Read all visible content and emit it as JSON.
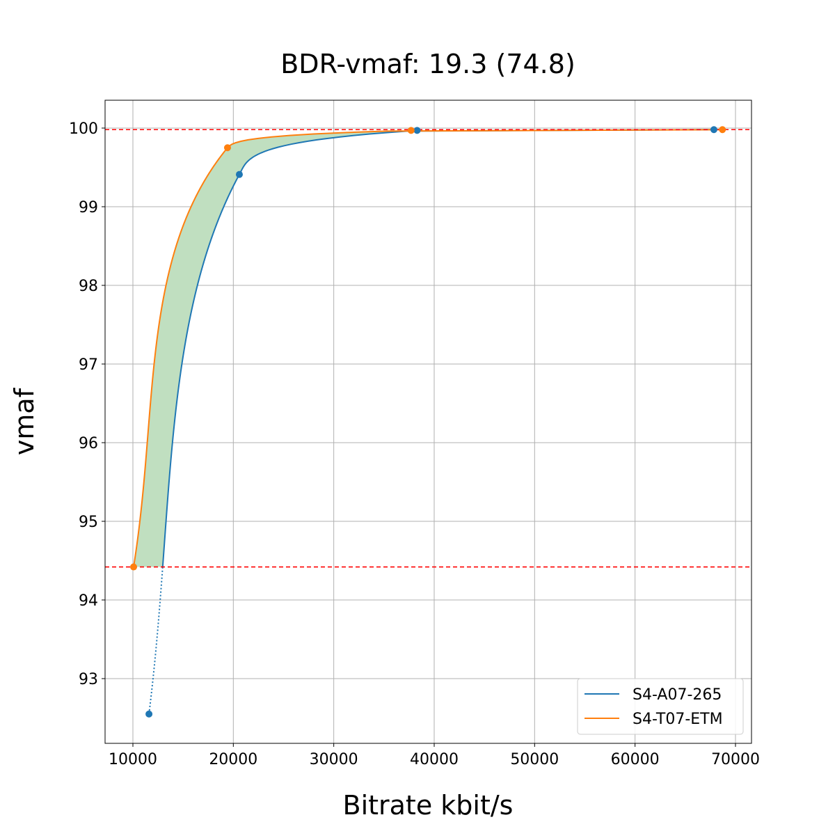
{
  "chart_data": {
    "type": "line",
    "title": "BDR-vmaf: 19.3 (74.8)",
    "xlabel": "Bitrate kbit/s",
    "ylabel": "vmaf",
    "xlim": [
      7229,
      71595
    ],
    "ylim": [
      92.177,
      100.354
    ],
    "xticks": [
      "10000",
      "20000",
      "30000",
      "40000",
      "50000",
      "60000",
      "70000"
    ],
    "yticks": [
      "93",
      "94",
      "95",
      "96",
      "97",
      "98",
      "99",
      "100"
    ],
    "grid": true,
    "legend_position": "lower-right",
    "series": [
      {
        "name": "S4-A07-265",
        "color": "#1f77b4",
        "x": [
          11600,
          20600,
          38300,
          67850
        ],
        "y": [
          92.55,
          99.41,
          99.97,
          99.98
        ]
      },
      {
        "name": "S4-T07-ETM",
        "color": "#ff7f0e",
        "x": [
          10070,
          19420,
          37700,
          68700
        ],
        "y": [
          94.42,
          99.75,
          99.97,
          99.98
        ]
      }
    ],
    "reference_lines": [
      94.42,
      99.98
    ],
    "reference_color": "#ff0000",
    "fill_color": "#c0dfc0"
  }
}
